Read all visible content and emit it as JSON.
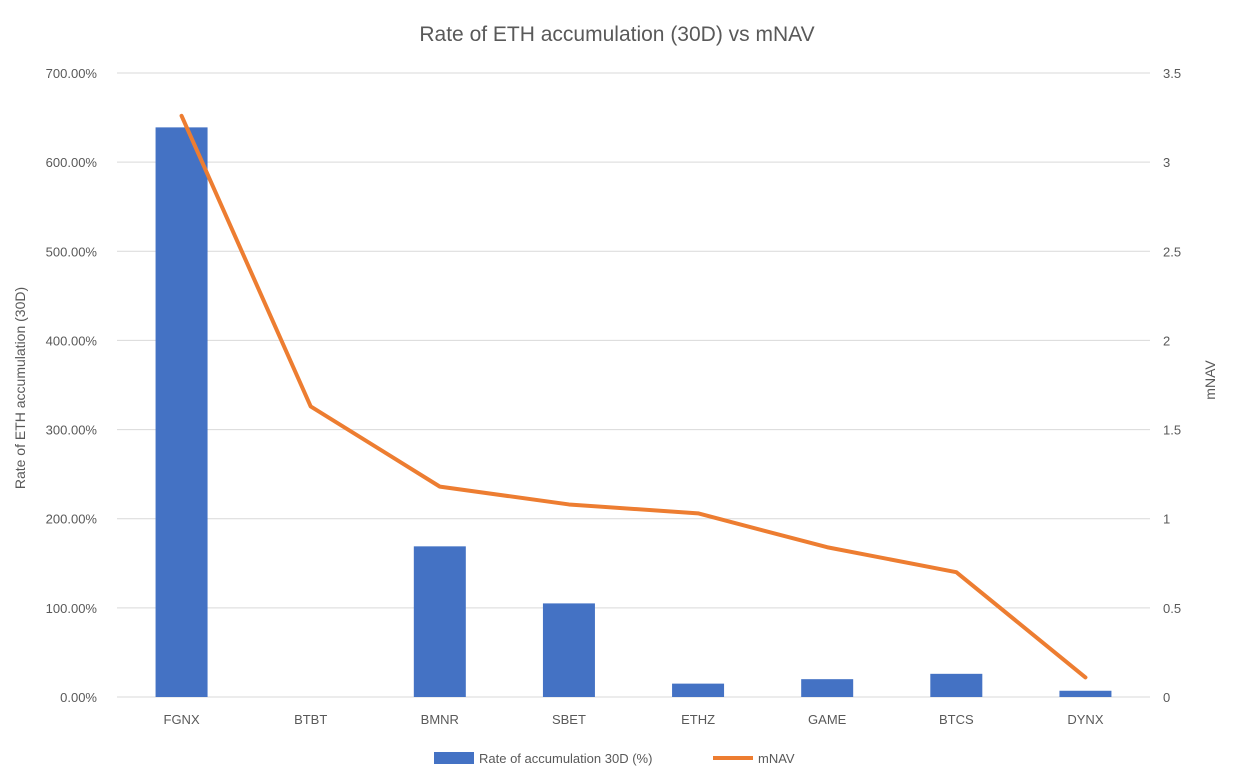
{
  "chart_data": {
    "type": "bar",
    "title": "Rate of ETH accumulation (30D) vs mNAV",
    "categories": [
      "FGNX",
      "BTBT",
      "BMNR",
      "SBET",
      "ETHZ",
      "GAME",
      "BTCS",
      "DYNX"
    ],
    "series": [
      {
        "name": "Rate of accumulation 30D (%)",
        "type": "bar",
        "axis": "left",
        "color": "#4472C4",
        "values": [
          639,
          0,
          169,
          105,
          15,
          20,
          26,
          7
        ]
      },
      {
        "name": "mNAV",
        "type": "line",
        "axis": "right",
        "color": "#ED7D31",
        "values": [
          3.26,
          1.63,
          1.18,
          1.08,
          1.03,
          0.84,
          0.7,
          0.11
        ]
      }
    ],
    "ylabel": "Rate of ETH accumulation (30D)",
    "y2label": "mNAV",
    "xlabel": "",
    "ylim": [
      0,
      700
    ],
    "y2lim": [
      0,
      3.5
    ],
    "yticks": [
      "0.00%",
      "100.00%",
      "200.00%",
      "300.00%",
      "400.00%",
      "500.00%",
      "600.00%",
      "700.00%"
    ],
    "y2ticks": [
      "0",
      "0.5",
      "1",
      "1.5",
      "2",
      "2.5",
      "3",
      "3.5"
    ],
    "grid": true,
    "legend": "bottom"
  }
}
